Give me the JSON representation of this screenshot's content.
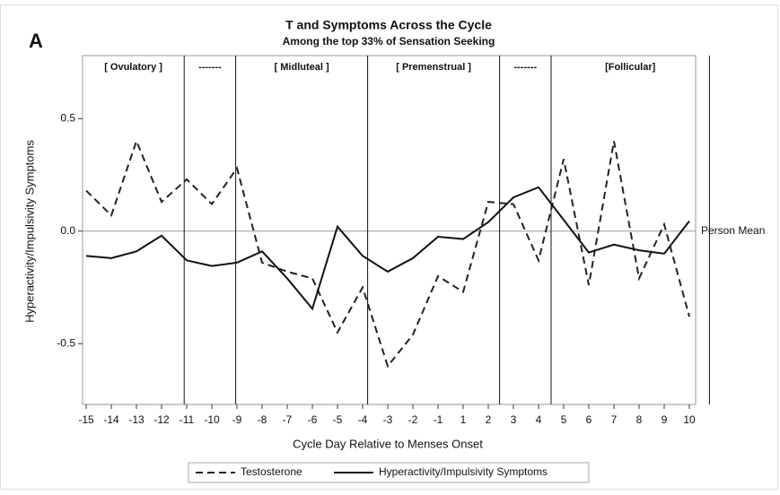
{
  "chart_data": {
    "type": "line",
    "panel_label": "A",
    "title": "T and Symptoms Across the Cycle",
    "subtitle": "Among the top 33% of Sensation Seeking",
    "x_label": "Cycle Day Relative to Menses Onset",
    "y_label": "Hyperactivity/Impulsivity Symptoms",
    "categories": [
      "-15",
      "-14",
      "-13",
      "-12",
      "-11",
      "-10",
      "-9",
      "-8",
      "-7",
      "-6",
      "-5",
      "-4",
      "-3",
      "-2",
      "-1",
      "1",
      "2",
      "3",
      "4",
      "5",
      "6",
      "7",
      "8",
      "9",
      "10"
    ],
    "series": [
      {
        "name": "Testosterone",
        "color": "#222222",
        "dashed": true,
        "values": [
          0.18,
          0.07,
          0.4,
          0.13,
          0.23,
          0.12,
          0.28,
          -0.14,
          -0.18,
          -0.21,
          -0.45,
          -0.25,
          -0.6,
          -0.46,
          -0.2,
          -0.27,
          0.13,
          0.12,
          -0.13,
          0.32,
          -0.24,
          0.4,
          -0.21,
          0.03,
          -0.38
        ]
      },
      {
        "name": "Hyperactivity/Impulsivity Symptoms",
        "color": "#111111",
        "dashed": false,
        "values": [
          -0.11,
          -0.12,
          -0.09,
          -0.02,
          -0.13,
          -0.155,
          -0.14,
          -0.09,
          -0.21,
          -0.345,
          0.02,
          -0.11,
          -0.18,
          -0.12,
          -0.025,
          -0.035,
          0.04,
          0.15,
          0.195,
          0.05,
          -0.095,
          -0.06,
          -0.085,
          -0.1,
          0.045
        ]
      }
    ],
    "ylim": [
      -0.77,
      0.78
    ],
    "yticks": [
      -0.5,
      {
        "value": 0,
        "label": "0.0"
      },
      0.5
    ],
    "reference_line": {
      "value": 0,
      "label": "Person Mean"
    },
    "phase_boundaries": [
      3.9,
      5.95,
      11.2,
      16.45,
      18.5,
      24.8
    ],
    "phases": [
      "[ Ovulatory ]",
      "-------",
      "[ Midluteal ]",
      "[ Premenstrual ]",
      "-------",
      "[Follicular]"
    ]
  }
}
